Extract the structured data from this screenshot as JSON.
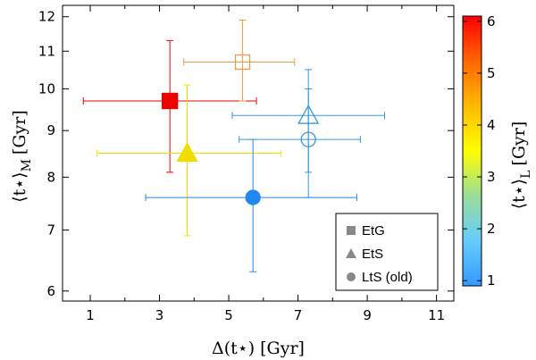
{
  "chart_data": {
    "type": "scatter",
    "xlabel": "Δ(t⋆) [Gyr]",
    "ylabel": "⟨t⋆⟩M [Gyr]",
    "ylabel_main": "⟨t⋆⟩",
    "ylabel_sub": "M",
    "ylabel_unit": "[Gyr]",
    "x_ticks": [
      1,
      3,
      5,
      7,
      9,
      11
    ],
    "y_ticks": [
      6,
      7,
      8,
      9,
      10,
      11,
      12
    ],
    "xlim": [
      0.2,
      11.5
    ],
    "ylim": [
      5.85,
      12.35
    ],
    "y_scale": "log",
    "colorbar": {
      "label": "⟨t⋆⟩L [Gyr]",
      "label_main": "⟨t⋆⟩",
      "label_sub": "L",
      "label_unit": "[Gyr]",
      "range": [
        0.9,
        6.1
      ],
      "ticks": [
        1,
        2,
        3,
        4,
        5,
        6
      ],
      "colors": [
        "#3399ff",
        "#66ccff",
        "#99dd99",
        "#ffff00",
        "#ffbb00",
        "#ff6600",
        "#ff0000"
      ]
    },
    "series": [
      {
        "name": "EtG",
        "marker": "square",
        "filled": true,
        "x": 3.3,
        "y": 9.7,
        "xerr": [
          0.8,
          5.8
        ],
        "yerr": [
          8.1,
          11.3
        ],
        "color_value": 6.0,
        "color": "#ee0000"
      },
      {
        "name": "EtG",
        "marker": "square",
        "filled": false,
        "x": 5.4,
        "y": 10.7,
        "xerr": [
          3.7,
          6.9
        ],
        "yerr": [
          9.7,
          11.9
        ],
        "color_value": 4.5,
        "color": "#ee9944"
      },
      {
        "name": "EtS",
        "marker": "triangle",
        "filled": true,
        "x": 3.8,
        "y": 8.5,
        "xerr": [
          1.2,
          6.5
        ],
        "yerr": [
          6.9,
          10.1
        ],
        "color_value": 3.5,
        "color": "#f2dd00"
      },
      {
        "name": "EtS",
        "marker": "triangle",
        "filled": false,
        "x": 7.3,
        "y": 9.35,
        "xerr": [
          5.1,
          9.5
        ],
        "yerr": [
          7.6,
          10.5
        ],
        "color_value": 1.1,
        "color": "#3399dd"
      },
      {
        "name": "LtS (old)",
        "marker": "circle",
        "filled": true,
        "x": 5.7,
        "y": 7.6,
        "xerr": [
          2.6,
          8.7
        ],
        "yerr": [
          6.3,
          8.8
        ],
        "color_value": 1.0,
        "color": "#2288ee"
      },
      {
        "name": "LtS (old)",
        "marker": "circle",
        "filled": false,
        "x": 7.3,
        "y": 8.8,
        "xerr": [
          5.3,
          8.8
        ],
        "yerr": [
          8.1,
          10.0
        ],
        "color_value": 1.1,
        "color": "#3399dd"
      }
    ],
    "legend": {
      "position": "bottom-right",
      "entries": [
        {
          "label": "EtG",
          "marker": "square"
        },
        {
          "label": "EtS",
          "marker": "triangle"
        },
        {
          "label": "LtS (old)",
          "marker": "circle"
        }
      ]
    }
  }
}
